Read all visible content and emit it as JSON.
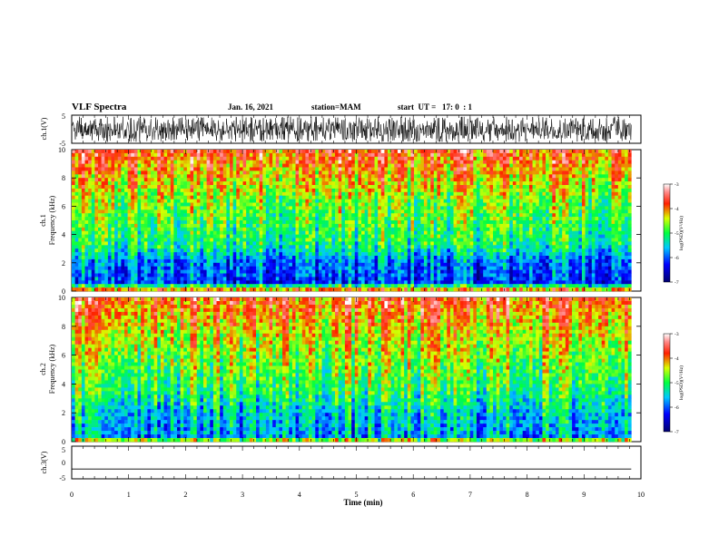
{
  "header": {
    "title": "VLF Spectra",
    "date": "Jan. 16, 2021",
    "station": "station=MAM",
    "start": "start  UT =   17: 0  : 1"
  },
  "chart_data": [
    {
      "type": "line",
      "panel": "ch1-waveform",
      "ylabel": "ch.1(V)",
      "ylim": [
        -5,
        5
      ],
      "yticks": [
        "5",
        "-5"
      ],
      "xlim": [
        0,
        10
      ],
      "description_values": {
        "x_end_min": 9.83
      }
    },
    {
      "type": "heatmap",
      "panel": "ch1-spectrogram",
      "ylabel_line1": "ch.1",
      "ylabel_line2": "Frequency  (kHz)",
      "ylim": [
        0,
        10
      ],
      "yticks": [
        "0",
        "2",
        "4",
        "6",
        "8",
        "10"
      ],
      "xlim": [
        0,
        10
      ],
      "colorbar": {
        "label": "log(PSD)(V²/Hz)",
        "ticks": [
          "-3",
          "-4",
          "-5",
          "-6",
          "-7"
        ],
        "range": [
          -7,
          -3
        ]
      }
    },
    {
      "type": "heatmap",
      "panel": "ch2-spectrogram",
      "ylabel_line1": "ch.2",
      "ylabel_line2": "Frequency  (kHz)",
      "ylim": [
        0,
        10
      ],
      "yticks": [
        "0",
        "2",
        "4",
        "6",
        "8",
        "10"
      ],
      "xlim": [
        0,
        10
      ],
      "colorbar": {
        "label": "log(PSD)(V²/Hz)",
        "ticks": [
          "-3",
          "-4",
          "-5",
          "-6",
          "-7"
        ],
        "range": [
          -7,
          -3
        ]
      }
    },
    {
      "type": "line",
      "panel": "ch3-waveform",
      "ylabel": "ch.3(V)",
      "ylim": [
        -5,
        5
      ],
      "yticks": [
        "5",
        "0",
        "-5"
      ],
      "xlim": [
        0,
        10
      ],
      "flat_value": -2
    }
  ],
  "xaxis": {
    "label": "Time  (min)",
    "ticks": [
      "0",
      "1",
      "2",
      "3",
      "4",
      "5",
      "6",
      "7",
      "8",
      "9",
      "10"
    ]
  }
}
